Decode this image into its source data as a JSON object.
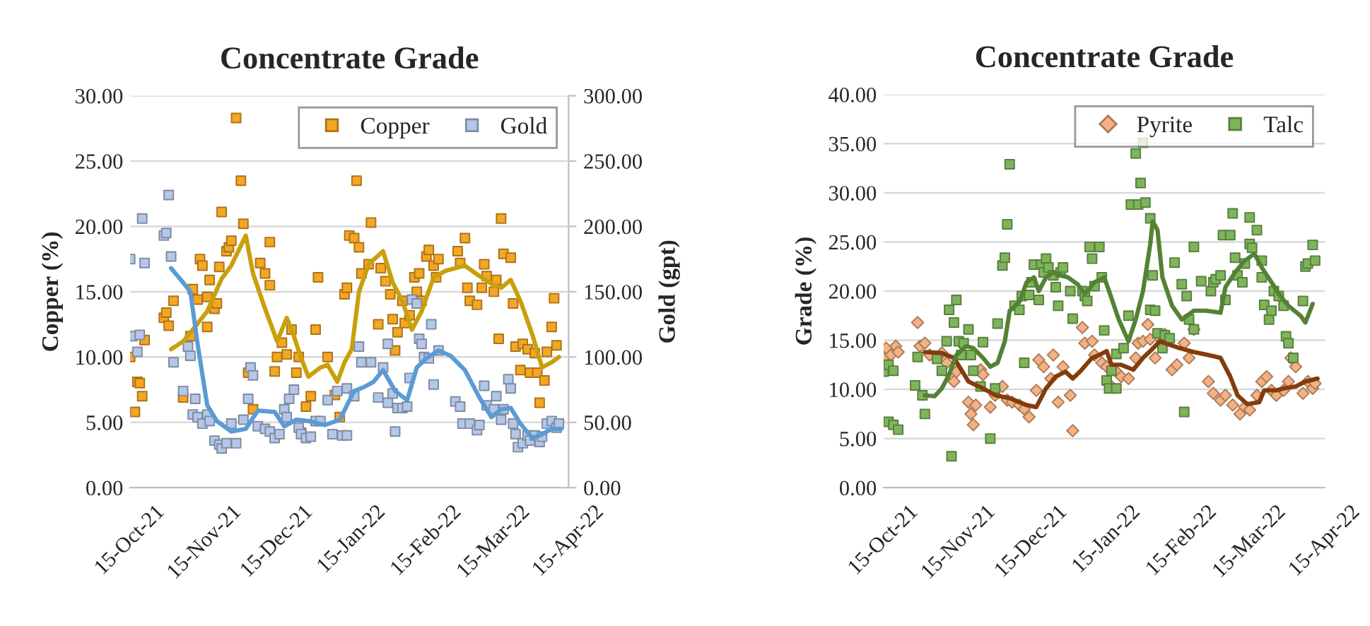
{
  "chart_data": [
    {
      "type": "scatter",
      "title": "Concentrate Grade",
      "ylabel": "Copper (%)",
      "y2label": "Gold (gpt)",
      "grid": "y",
      "legend": "top right",
      "xlim": [
        "2021-10-15",
        "2022-04-15"
      ],
      "xticks": [
        {
          "value": "2021-10-15",
          "label": "15-Oct-21"
        },
        {
          "value": "2021-11-15",
          "label": "15-Nov-21"
        },
        {
          "value": "2021-12-15",
          "label": "15-Dec-21"
        },
        {
          "value": "2022-01-15",
          "label": "15-Jan-22"
        },
        {
          "value": "2022-02-15",
          "label": "15-Feb-22"
        },
        {
          "value": "2022-03-15",
          "label": "15-Mar-22"
        },
        {
          "value": "2022-04-15",
          "label": "15-Apr-22"
        }
      ],
      "ylim": [
        0,
        30
      ],
      "yticks": [
        {
          "value": 0,
          "label": "0.00"
        },
        {
          "value": 5,
          "label": "5.00"
        },
        {
          "value": 10,
          "label": "10.00"
        },
        {
          "value": 15,
          "label": "15.00"
        },
        {
          "value": 20,
          "label": "20.00"
        },
        {
          "value": 25,
          "label": "25.00"
        },
        {
          "value": 30,
          "label": "30.00"
        }
      ],
      "y2lim": [
        0,
        300
      ],
      "y2ticks": [
        {
          "value": 0,
          "label": "0.00"
        },
        {
          "value": 50,
          "label": "50.00"
        },
        {
          "value": 100,
          "label": "100.00"
        },
        {
          "value": 150,
          "label": "150.00"
        },
        {
          "value": 200,
          "label": "200.00"
        },
        {
          "value": 250,
          "label": "250.00"
        },
        {
          "value": 300,
          "label": "300.00"
        }
      ],
      "series": [
        {
          "name": "Copper",
          "type": "scatter",
          "marker": "square",
          "color": "#f5a623",
          "x": [
            "2021-10-15",
            "2021-10-17",
            "2021-10-18",
            "2021-10-19",
            "2021-10-20",
            "2021-10-21",
            "2021-10-29",
            "2021-10-30",
            "2021-10-31",
            "2021-11-02",
            "2021-11-06",
            "2021-11-09",
            "2021-11-10",
            "2021-11-12",
            "2021-11-13",
            "2021-11-14",
            "2021-11-16",
            "2021-11-16",
            "2021-11-17",
            "2021-11-19",
            "2021-11-20",
            "2021-11-21",
            "2021-11-22",
            "2021-11-24",
            "2021-11-25",
            "2021-11-26",
            "2021-11-28",
            "2021-11-30",
            "2021-12-01",
            "2021-12-03",
            "2021-12-05",
            "2021-12-08",
            "2021-12-10",
            "2021-12-12",
            "2021-12-12",
            "2021-12-14",
            "2021-12-15",
            "2021-12-17",
            "2021-12-19",
            "2021-12-21",
            "2021-12-23",
            "2021-12-24",
            "2021-12-25",
            "2021-12-27",
            "2021-12-29",
            "2021-12-31",
            "2022-01-01",
            "2022-01-05",
            "2022-01-08",
            "2022-01-10",
            "2022-01-12",
            "2022-01-13",
            "2022-01-14",
            "2022-01-16",
            "2022-01-17",
            "2022-01-18",
            "2022-01-19",
            "2022-01-22",
            "2022-01-23",
            "2022-01-26",
            "2022-01-27",
            "2022-01-29",
            "2022-01-31",
            "2022-02-01",
            "2022-02-02",
            "2022-02-03",
            "2022-02-05",
            "2022-02-06",
            "2022-02-08",
            "2022-02-10",
            "2022-02-11",
            "2022-02-12",
            "2022-02-13",
            "2022-02-15",
            "2022-02-16",
            "2022-02-18",
            "2022-02-19",
            "2022-02-20",
            "2022-02-28",
            "2022-03-01",
            "2022-03-03",
            "2022-03-04",
            "2022-03-05",
            "2022-03-08",
            "2022-03-10",
            "2022-03-11",
            "2022-03-12",
            "2022-03-15",
            "2022-03-16",
            "2022-03-17",
            "2022-03-18",
            "2022-03-19",
            "2022-03-22",
            "2022-03-23",
            "2022-03-24",
            "2022-03-26",
            "2022-03-27",
            "2022-03-29",
            "2022-03-30",
            "2022-04-01",
            "2022-04-02",
            "2022-04-03",
            "2022-04-05",
            "2022-04-06",
            "2022-04-08",
            "2022-04-09",
            "2022-04-10"
          ],
          "values": [
            10.0,
            5.8,
            8.1,
            8.0,
            7.0,
            11.3,
            13.0,
            13.4,
            12.4,
            14.3,
            6.9,
            11.6,
            15.2,
            14.4,
            17.5,
            17.0,
            12.3,
            14.6,
            15.9,
            13.7,
            14.1,
            16.9,
            21.1,
            18.1,
            18.4,
            18.9,
            28.3,
            23.5,
            20.2,
            8.8,
            6.0,
            17.2,
            16.4,
            15.5,
            18.8,
            8.9,
            10.0,
            11.1,
            10.2,
            12.1,
            8.8,
            10.0,
            4.2,
            6.2,
            7.0,
            12.1,
            16.1,
            10.0,
            7.1,
            5.4,
            14.8,
            15.3,
            19.3,
            19.1,
            23.5,
            18.4,
            16.4,
            17.1,
            20.3,
            12.5,
            16.8,
            15.8,
            14.8,
            12.9,
            10.5,
            11.9,
            14.3,
            12.6,
            13.2,
            16.1,
            15.0,
            16.4,
            14.3,
            17.7,
            18.2,
            17.0,
            16.1,
            17.5,
            18.1,
            17.2,
            19.1,
            15.3,
            14.3,
            14.0,
            15.3,
            17.1,
            16.2,
            15.0,
            15.9,
            11.4,
            20.6,
            17.9,
            17.6,
            14.1,
            10.8,
            9.0,
            11.0,
            10.6,
            8.8,
            10.3,
            8.8,
            6.5,
            8.2,
            10.4,
            12.3,
            14.5,
            10.9
          ]
        },
        {
          "name": "Gold",
          "type": "scatter",
          "marker": "square",
          "axis": "y2",
          "color": "#b4c7e7",
          "x": [
            "2021-10-15",
            "2021-10-16",
            "2021-10-18",
            "2021-10-19",
            "2021-10-20",
            "2021-10-21",
            "2021-10-29",
            "2021-10-30",
            "2021-10-31",
            "2021-11-01",
            "2021-11-02",
            "2021-11-06",
            "2021-11-08",
            "2021-11-09",
            "2021-11-11",
            "2021-11-10",
            "2021-11-12",
            "2021-11-14",
            "2021-11-16",
            "2021-11-17",
            "2021-11-19",
            "2021-11-21",
            "2021-11-22",
            "2021-11-24",
            "2021-11-26",
            "2021-11-28",
            "2021-12-01",
            "2021-12-03",
            "2021-12-04",
            "2021-12-05",
            "2021-12-07",
            "2021-12-10",
            "2021-12-12",
            "2021-12-14",
            "2021-12-16",
            "2021-12-18",
            "2021-12-19",
            "2021-12-20",
            "2021-12-22",
            "2021-12-24",
            "2021-12-25",
            "2021-12-27",
            "2021-12-29",
            "2021-12-31",
            "2022-01-02",
            "2022-01-05",
            "2022-01-07",
            "2022-01-09",
            "2022-01-11",
            "2022-01-13",
            "2022-01-13",
            "2022-01-16",
            "2022-01-18",
            "2022-01-19",
            "2022-01-23",
            "2022-01-26",
            "2022-01-28",
            "2022-01-30",
            "2022-01-30",
            "2022-02-01",
            "2022-02-02",
            "2022-02-03",
            "2022-02-05",
            "2022-02-07",
            "2022-02-08",
            "2022-02-09",
            "2022-02-11",
            "2022-02-12",
            "2022-02-13",
            "2022-02-14",
            "2022-02-16",
            "2022-02-17",
            "2022-02-18",
            "2022-02-20",
            "2022-02-27",
            "2022-03-01",
            "2022-03-02",
            "2022-03-05",
            "2022-03-08",
            "2022-03-09",
            "2022-03-11",
            "2022-03-12",
            "2022-03-15",
            "2022-03-16",
            "2022-03-18",
            "2022-03-19",
            "2022-03-21",
            "2022-03-22",
            "2022-03-23",
            "2022-03-24",
            "2022-03-25",
            "2022-03-27",
            "2022-03-29",
            "2022-03-30",
            "2022-04-01",
            "2022-04-03",
            "2022-04-04",
            "2022-04-06",
            "2022-04-08",
            "2022-04-10",
            "2022-04-11"
          ],
          "values": [
            175,
            116,
            104,
            117,
            206,
            172,
            193,
            195,
            224,
            177,
            96,
            74,
            108,
            101,
            68,
            56,
            54,
            49,
            56,
            51,
            36,
            33,
            30,
            34,
            49,
            34,
            52,
            68,
            92,
            86,
            47,
            45,
            43,
            38,
            41,
            60,
            54,
            68,
            75,
            46,
            41,
            38,
            39,
            51,
            51,
            67,
            41,
            74,
            40,
            76,
            40,
            70,
            108,
            96,
            96,
            69,
            92,
            110,
            65,
            72,
            43,
            61,
            61,
            62,
            84,
            144,
            141,
            114,
            110,
            100,
            99,
            125,
            79,
            105,
            66,
            62,
            49,
            49,
            44,
            48,
            78,
            63,
            60,
            70,
            52,
            60,
            83,
            76,
            49,
            41,
            31,
            34,
            40,
            36,
            40,
            35,
            39,
            49,
            51,
            46,
            49
          ]
        },
        {
          "type": "line",
          "color": "#c9a00c",
          "x": [
            "2021-11-01",
            "2021-11-06",
            "2021-11-10",
            "2021-11-16",
            "2021-11-22",
            "2021-11-26",
            "2021-12-02",
            "2021-12-05",
            "2021-12-10",
            "2021-12-15",
            "2021-12-19",
            "2021-12-22",
            "2021-12-25",
            "2021-12-28",
            "2022-01-02",
            "2022-01-05",
            "2022-01-09",
            "2022-01-12",
            "2022-01-15",
            "2022-01-18",
            "2022-01-22",
            "2022-01-28",
            "2022-02-01",
            "2022-02-05",
            "2022-02-09",
            "2022-02-13",
            "2022-02-18",
            "2022-02-23",
            "2022-03-03",
            "2022-03-09",
            "2022-03-15",
            "2022-03-18",
            "2022-03-22",
            "2022-03-26",
            "2022-03-31",
            "2022-04-04",
            "2022-04-08",
            "2022-04-11"
          ],
          "values": [
            10.6,
            11.2,
            12.1,
            13.5,
            16.0,
            17.0,
            19.3,
            16.4,
            13.7,
            11.2,
            13.0,
            11.6,
            9.9,
            8.5,
            9.2,
            9.4,
            8.1,
            9.6,
            10.6,
            15.0,
            17.1,
            18.1,
            15.7,
            14.3,
            12.1,
            13.5,
            16.1,
            16.6,
            17.0,
            16.2,
            15.5,
            15.3,
            15.9,
            14.3,
            11.7,
            9.2,
            9.6,
            10.0
          ]
        },
        {
          "type": "line",
          "axis": "y2",
          "color": "#5b9bd5",
          "x": [
            "2021-11-01",
            "2021-11-06",
            "2021-11-09",
            "2021-11-12",
            "2021-11-16",
            "2021-11-20",
            "2021-11-26",
            "2021-12-02",
            "2021-12-07",
            "2021-12-14",
            "2021-12-18",
            "2021-12-23",
            "2021-12-28",
            "2022-01-04",
            "2022-01-10",
            "2022-01-16",
            "2022-01-20",
            "2022-01-24",
            "2022-01-28",
            "2022-02-02",
            "2022-02-07",
            "2022-02-11",
            "2022-02-15",
            "2022-02-20",
            "2022-02-25",
            "2022-03-03",
            "2022-03-09",
            "2022-03-14",
            "2022-03-18",
            "2022-03-22",
            "2022-03-26",
            "2022-03-31",
            "2022-04-03",
            "2022-04-08",
            "2022-04-12"
          ],
          "values": [
            168,
            157,
            150,
            110,
            63,
            51,
            43,
            45,
            59,
            58,
            47,
            52,
            51,
            48,
            52,
            74,
            77,
            81,
            90,
            74,
            67,
            92,
            99,
            105,
            101,
            90,
            69,
            54,
            60,
            61,
            49,
            38,
            40,
            45,
            45
          ]
        }
      ]
    },
    {
      "type": "scatter",
      "title": "Concentrate Grade",
      "ylabel": "Grade (%)",
      "grid": "y",
      "legend": "top right",
      "xlim": [
        "2021-10-15",
        "2022-04-15"
      ],
      "xticks": [
        {
          "value": "2021-10-15",
          "label": "15-Oct-21"
        },
        {
          "value": "2021-11-15",
          "label": "15-Nov-21"
        },
        {
          "value": "2021-12-15",
          "label": "15-Dec-21"
        },
        {
          "value": "2022-01-15",
          "label": "15-Jan-22"
        },
        {
          "value": "2022-02-15",
          "label": "15-Feb-22"
        },
        {
          "value": "2022-03-15",
          "label": "15-Mar-22"
        },
        {
          "value": "2022-04-15",
          "label": "15-Apr-22"
        }
      ],
      "ylim": [
        0,
        40
      ],
      "yticks": [
        {
          "value": 0,
          "label": "0.00"
        },
        {
          "value": 5,
          "label": "5.00"
        },
        {
          "value": 10,
          "label": "10.00"
        },
        {
          "value": 15,
          "label": "15.00"
        },
        {
          "value": 20,
          "label": "20.00"
        },
        {
          "value": 25,
          "label": "25.00"
        },
        {
          "value": 30,
          "label": "30.00"
        },
        {
          "value": 35,
          "label": "35.00"
        },
        {
          "value": 40,
          "label": "40.00"
        }
      ],
      "series": [
        {
          "name": "Pyrite",
          "type": "scatter",
          "marker": "diamond",
          "color": "#f4b183",
          "x": [
            "2021-10-15",
            "2021-10-16",
            "2021-10-18",
            "2021-10-20",
            "2021-10-21",
            "2021-10-29",
            "2021-10-30",
            "2021-11-01",
            "2021-11-03",
            "2021-11-08",
            "2021-11-10",
            "2021-11-12",
            "2021-11-13",
            "2021-11-14",
            "2021-11-19",
            "2021-11-20",
            "2021-11-21",
            "2021-11-22",
            "2021-11-24",
            "2021-11-25",
            "2021-11-28",
            "2021-11-30",
            "2021-12-03",
            "2021-12-05",
            "2021-12-07",
            "2021-12-10",
            "2021-12-12",
            "2021-12-14",
            "2021-12-17",
            "2021-12-18",
            "2021-12-20",
            "2021-12-23",
            "2021-12-24",
            "2021-12-26",
            "2021-12-28",
            "2021-12-31",
            "2022-01-01",
            "2022-01-05",
            "2022-01-06",
            "2022-01-09",
            "2022-01-10",
            "2022-01-13",
            "2022-01-15",
            "2022-01-17",
            "2022-01-19",
            "2022-01-21",
            "2022-01-24",
            "2022-01-27",
            "2022-01-28",
            "2022-01-30",
            "2022-02-01",
            "2022-02-02",
            "2022-02-04",
            "2022-02-07",
            "2022-02-08",
            "2022-02-11",
            "2022-02-13",
            "2022-02-16",
            "2022-02-18",
            "2022-02-20",
            "2022-02-26",
            "2022-02-28",
            "2022-03-03",
            "2022-03-05",
            "2022-03-08",
            "2022-03-11",
            "2022-03-13",
            "2022-03-15",
            "2022-03-18",
            "2022-03-20",
            "2022-03-22",
            "2022-03-24",
            "2022-03-26",
            "2022-03-29",
            "2022-03-31",
            "2022-04-01",
            "2022-04-03",
            "2022-04-06",
            "2022-04-08",
            "2022-04-10",
            "2022-04-11"
          ],
          "values": [
            13.2,
            14.2,
            13.5,
            14.4,
            13.8,
            16.8,
            14.4,
            14.7,
            13.5,
            13.7,
            12.7,
            11.3,
            10.8,
            11.8,
            8.7,
            7.5,
            6.4,
            8.4,
            12.0,
            11.5,
            8.2,
            9.4,
            10.3,
            8.9,
            8.7,
            8.4,
            8.0,
            7.2,
            9.9,
            13.0,
            12.3,
            11.1,
            13.5,
            8.7,
            12.3,
            9.4,
            5.8,
            16.3,
            14.7,
            14.9,
            13.5,
            12.7,
            12.3,
            10.3,
            11.8,
            11.3,
            11.1,
            13.2,
            14.7,
            14.9,
            16.6,
            15.1,
            13.2,
            14.9,
            15.6,
            12.0,
            12.5,
            14.7,
            13.2,
            16.1,
            10.8,
            9.6,
            8.9,
            9.4,
            8.4,
            7.5,
            8.2,
            7.9,
            9.4,
            10.8,
            11.3,
            9.9,
            9.4,
            9.9,
            10.8,
            13.2,
            12.3,
            9.6,
            10.8,
            10.1,
            10.6
          ]
        },
        {
          "name": "Talc",
          "type": "scatter",
          "marker": "square",
          "color": "#7fb55a",
          "x": [
            "2021-10-15",
            "2021-10-17",
            "2021-10-19",
            "2021-10-17",
            "2021-10-19",
            "2021-10-21",
            "2021-10-28",
            "2021-10-29",
            "2021-10-31",
            "2021-11-01",
            "2021-11-06",
            "2021-11-08",
            "2021-11-10",
            "2021-11-11",
            "2021-11-12",
            "2021-11-13",
            "2021-11-14",
            "2021-11-15",
            "2021-11-16",
            "2021-11-17",
            "2021-11-19",
            "2021-11-20",
            "2021-11-21",
            "2021-11-24",
            "2021-11-25",
            "2021-11-28",
            "2021-11-30",
            "2021-12-01",
            "2021-12-03",
            "2021-12-04",
            "2021-12-05",
            "2021-12-06",
            "2021-12-08",
            "2021-12-10",
            "2021-12-11",
            "2021-12-12",
            "2021-12-14",
            "2021-12-15",
            "2021-12-16",
            "2021-12-18",
            "2021-12-19",
            "2021-12-20",
            "2021-12-21",
            "2021-12-22",
            "2021-12-24",
            "2021-12-25",
            "2021-12-26",
            "2021-12-27",
            "2021-12-28",
            "2021-12-31",
            "2022-01-01",
            "2022-01-05",
            "2022-01-06",
            "2022-01-07",
            "2022-01-08",
            "2022-01-09",
            "2022-01-10",
            "2022-01-12",
            "2022-01-13",
            "2022-01-14",
            "2022-01-15",
            "2022-01-16",
            "2022-01-17",
            "2022-01-19",
            "2022-01-19",
            "2022-01-22",
            "2022-01-24",
            "2022-01-25",
            "2022-01-27",
            "2022-01-28",
            "2022-01-30",
            "2022-01-29",
            "2022-01-31",
            "2022-02-02",
            "2022-02-03",
            "2022-02-02",
            "2022-02-04",
            "2022-02-05",
            "2022-02-07",
            "2022-02-08",
            "2022-02-10",
            "2022-02-12",
            "2022-02-15",
            "2022-02-16",
            "2022-02-17",
            "2022-02-18",
            "2022-02-20",
            "2022-02-20",
            "2022-02-23",
            "2022-02-27",
            "2022-02-28",
            "2022-03-01",
            "2022-03-03",
            "2022-03-04",
            "2022-03-05",
            "2022-03-07",
            "2022-03-08",
            "2022-03-09",
            "2022-03-10",
            "2022-03-12",
            "2022-03-13",
            "2022-03-15",
            "2022-03-15",
            "2022-03-16",
            "2022-03-18",
            "2022-03-20",
            "2022-03-20",
            "2022-03-21",
            "2022-03-23",
            "2022-03-24",
            "2022-03-25",
            "2022-03-27",
            "2022-03-29",
            "2022-03-30",
            "2022-03-31",
            "2022-04-02",
            "2022-04-06",
            "2022-04-07",
            "2022-04-08",
            "2022-04-10",
            "2022-04-11"
          ],
          "values": [
            11.8,
            12.5,
            11.9,
            6.7,
            6.4,
            5.9,
            10.4,
            13.3,
            9.4,
            7.5,
            13.1,
            11.9,
            14.9,
            18.1,
            3.2,
            16.8,
            19.1,
            14.9,
            13.5,
            14.7,
            16.1,
            13.5,
            11.9,
            10.3,
            14.8,
            5.0,
            10.1,
            16.7,
            22.6,
            23.4,
            26.8,
            32.9,
            18.5,
            18.1,
            19.5,
            12.7,
            19.6,
            20.9,
            22.7,
            19.1,
            22.7,
            21.9,
            23.3,
            22.4,
            21.6,
            20.4,
            18.5,
            21.9,
            22.4,
            20.0,
            17.2,
            20.0,
            19.5,
            19.0,
            24.5,
            23.3,
            20.5,
            24.5,
            21.4,
            16.0,
            10.9,
            10.1,
            11.9,
            10.1,
            13.6,
            14.2,
            17.5,
            28.8,
            34.0,
            28.8,
            35.1,
            31.0,
            29.0,
            27.4,
            21.6,
            18.1,
            18.0,
            15.7,
            14.2,
            15.5,
            15.2,
            22.9,
            20.7,
            7.7,
            19.5,
            17.1,
            24.5,
            16.1,
            21.0,
            20.0,
            20.9,
            21.2,
            21.6,
            25.7,
            19.1,
            25.7,
            27.9,
            23.4,
            21.6,
            20.9,
            22.8,
            24.8,
            27.5,
            24.4,
            26.2,
            23.1,
            21.4,
            18.6,
            17.1,
            18.0,
            20.0,
            19.5,
            18.5,
            15.4,
            14.7,
            13.2,
            19.0,
            22.5,
            22.8,
            24.7,
            23.1
          ]
        },
        {
          "type": "line",
          "color": "#843c0c",
          "x": [
            "2021-11-01",
            "2021-11-08",
            "2021-11-13",
            "2021-11-19",
            "2021-11-25",
            "2021-11-30",
            "2021-12-06",
            "2021-12-13",
            "2021-12-17",
            "2021-12-21",
            "2021-12-25",
            "2021-12-29",
            "2022-01-01",
            "2022-01-04",
            "2022-01-09",
            "2022-01-12",
            "2022-01-15",
            "2022-01-17",
            "2022-01-21",
            "2022-01-26",
            "2022-01-30",
            "2022-02-02",
            "2022-02-06",
            "2022-02-08",
            "2022-02-14",
            "2022-02-20",
            "2022-02-26",
            "2022-03-03",
            "2022-03-07",
            "2022-03-10",
            "2022-03-14",
            "2022-03-19",
            "2022-03-21",
            "2022-03-26",
            "2022-03-29",
            "2022-04-03",
            "2022-04-07",
            "2022-04-12"
          ],
          "values": [
            13.8,
            13.7,
            13.2,
            10.8,
            10.1,
            9.4,
            9.1,
            8.4,
            8.2,
            10.1,
            11.3,
            11.8,
            11.1,
            11.8,
            13.2,
            13.5,
            13.9,
            12.5,
            12.5,
            12.0,
            13.2,
            13.9,
            14.9,
            14.7,
            14.2,
            13.8,
            13.5,
            13.2,
            11.3,
            9.4,
            8.5,
            8.7,
            9.9,
            9.9,
            10.1,
            10.3,
            10.8,
            11.1
          ]
        },
        {
          "type": "line",
          "color": "#548235",
          "x": [
            "2021-11-01",
            "2021-11-05",
            "2021-11-08",
            "2021-11-11",
            "2021-11-14",
            "2021-11-18",
            "2021-11-21",
            "2021-11-25",
            "2021-11-28",
            "2021-12-01",
            "2021-12-04",
            "2021-12-06",
            "2021-12-10",
            "2021-12-13",
            "2021-12-16",
            "2021-12-18",
            "2021-12-21",
            "2021-12-24",
            "2021-12-27",
            "2021-12-30",
            "2022-01-03",
            "2022-01-06",
            "2022-01-10",
            "2022-01-14",
            "2022-01-16",
            "2022-01-20",
            "2022-01-24",
            "2022-01-27",
            "2022-01-30",
            "2022-02-02",
            "2022-02-03",
            "2022-02-05",
            "2022-02-07",
            "2022-02-11",
            "2022-02-15",
            "2022-02-20",
            "2022-02-25",
            "2022-03-03",
            "2022-03-05",
            "2022-03-09",
            "2022-03-13",
            "2022-03-17",
            "2022-03-20",
            "2022-03-24",
            "2022-03-27",
            "2022-03-31",
            "2022-04-05",
            "2022-04-07",
            "2022-04-10"
          ],
          "values": [
            9.4,
            9.3,
            10.1,
            11.5,
            13.5,
            14.4,
            14.2,
            13.2,
            12.3,
            12.7,
            14.9,
            18.0,
            18.9,
            20.9,
            21.4,
            20.0,
            21.4,
            21.9,
            21.6,
            21.4,
            20.7,
            19.7,
            20.9,
            21.4,
            20.0,
            17.1,
            14.9,
            17.1,
            20.0,
            24.8,
            27.1,
            26.2,
            21.4,
            18.5,
            17.1,
            18.0,
            18.0,
            17.8,
            20.4,
            21.9,
            23.1,
            23.8,
            22.4,
            20.9,
            19.7,
            18.5,
            17.5,
            16.8,
            18.7
          ]
        }
      ]
    }
  ]
}
